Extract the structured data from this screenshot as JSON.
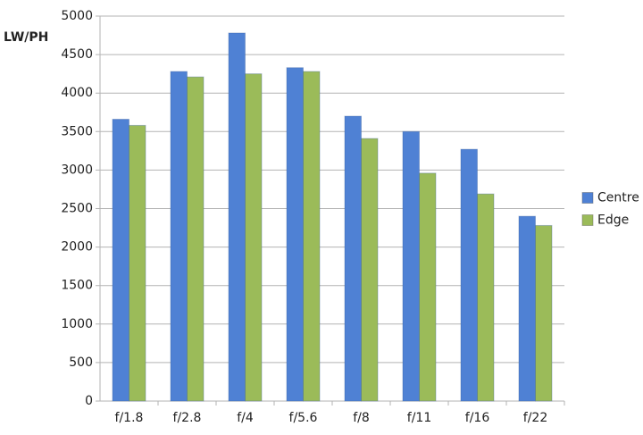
{
  "chart_data": {
    "type": "bar",
    "y_label": "LW/PH",
    "categories": [
      "f/1.8",
      "f/2.8",
      "f/4",
      "f/5.6",
      "f/8",
      "f/11",
      "f/16",
      "f/22"
    ],
    "series": [
      {
        "name": "Centre",
        "color": "#4f81d4",
        "values": [
          3660,
          4280,
          4780,
          4330,
          3700,
          3500,
          3270,
          2400
        ]
      },
      {
        "name": "Edge",
        "color": "#9bbb59",
        "values": [
          3580,
          4210,
          4250,
          4280,
          3410,
          2960,
          2690,
          2280
        ]
      }
    ],
    "ylim": [
      0,
      5000
    ],
    "yticks": [
      0,
      500,
      1000,
      1500,
      2000,
      2500,
      3000,
      3500,
      4000,
      4500,
      5000
    ],
    "grid": true,
    "legend": "right"
  }
}
